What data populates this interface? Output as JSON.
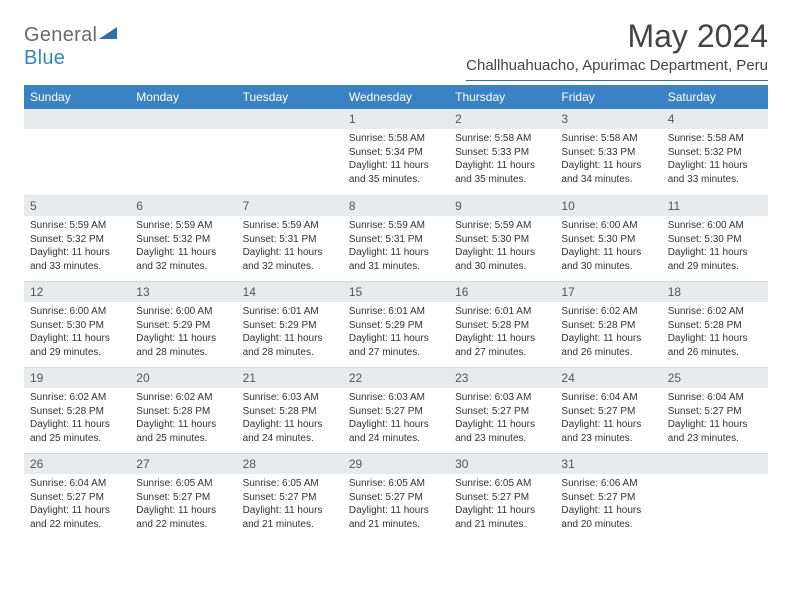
{
  "logo": {
    "text1": "General",
    "text2": "Blue"
  },
  "title": "May 2024",
  "location": "Challhuahuacho, Apurimac Department, Peru",
  "colors": {
    "header_bg": "#3b82c4",
    "header_text": "#ffffff",
    "daynum_bg": "#e8ebed",
    "divider": "#2f6fa8",
    "body_text": "#333333",
    "title_text": "#444444"
  },
  "typography": {
    "title_fontsize": 32,
    "location_fontsize": 15,
    "weekday_fontsize": 12,
    "daynum_fontsize": 12,
    "cell_fontsize": 10
  },
  "weekdays": [
    "Sunday",
    "Monday",
    "Tuesday",
    "Wednesday",
    "Thursday",
    "Friday",
    "Saturday"
  ],
  "weeks": [
    [
      null,
      null,
      null,
      {
        "n": "1",
        "sr": "Sunrise: 5:58 AM",
        "ss": "Sunset: 5:34 PM",
        "d1": "Daylight: 11 hours",
        "d2": "and 35 minutes."
      },
      {
        "n": "2",
        "sr": "Sunrise: 5:58 AM",
        "ss": "Sunset: 5:33 PM",
        "d1": "Daylight: 11 hours",
        "d2": "and 35 minutes."
      },
      {
        "n": "3",
        "sr": "Sunrise: 5:58 AM",
        "ss": "Sunset: 5:33 PM",
        "d1": "Daylight: 11 hours",
        "d2": "and 34 minutes."
      },
      {
        "n": "4",
        "sr": "Sunrise: 5:58 AM",
        "ss": "Sunset: 5:32 PM",
        "d1": "Daylight: 11 hours",
        "d2": "and 33 minutes."
      }
    ],
    [
      {
        "n": "5",
        "sr": "Sunrise: 5:59 AM",
        "ss": "Sunset: 5:32 PM",
        "d1": "Daylight: 11 hours",
        "d2": "and 33 minutes."
      },
      {
        "n": "6",
        "sr": "Sunrise: 5:59 AM",
        "ss": "Sunset: 5:32 PM",
        "d1": "Daylight: 11 hours",
        "d2": "and 32 minutes."
      },
      {
        "n": "7",
        "sr": "Sunrise: 5:59 AM",
        "ss": "Sunset: 5:31 PM",
        "d1": "Daylight: 11 hours",
        "d2": "and 32 minutes."
      },
      {
        "n": "8",
        "sr": "Sunrise: 5:59 AM",
        "ss": "Sunset: 5:31 PM",
        "d1": "Daylight: 11 hours",
        "d2": "and 31 minutes."
      },
      {
        "n": "9",
        "sr": "Sunrise: 5:59 AM",
        "ss": "Sunset: 5:30 PM",
        "d1": "Daylight: 11 hours",
        "d2": "and 30 minutes."
      },
      {
        "n": "10",
        "sr": "Sunrise: 6:00 AM",
        "ss": "Sunset: 5:30 PM",
        "d1": "Daylight: 11 hours",
        "d2": "and 30 minutes."
      },
      {
        "n": "11",
        "sr": "Sunrise: 6:00 AM",
        "ss": "Sunset: 5:30 PM",
        "d1": "Daylight: 11 hours",
        "d2": "and 29 minutes."
      }
    ],
    [
      {
        "n": "12",
        "sr": "Sunrise: 6:00 AM",
        "ss": "Sunset: 5:30 PM",
        "d1": "Daylight: 11 hours",
        "d2": "and 29 minutes."
      },
      {
        "n": "13",
        "sr": "Sunrise: 6:00 AM",
        "ss": "Sunset: 5:29 PM",
        "d1": "Daylight: 11 hours",
        "d2": "and 28 minutes."
      },
      {
        "n": "14",
        "sr": "Sunrise: 6:01 AM",
        "ss": "Sunset: 5:29 PM",
        "d1": "Daylight: 11 hours",
        "d2": "and 28 minutes."
      },
      {
        "n": "15",
        "sr": "Sunrise: 6:01 AM",
        "ss": "Sunset: 5:29 PM",
        "d1": "Daylight: 11 hours",
        "d2": "and 27 minutes."
      },
      {
        "n": "16",
        "sr": "Sunrise: 6:01 AM",
        "ss": "Sunset: 5:28 PM",
        "d1": "Daylight: 11 hours",
        "d2": "and 27 minutes."
      },
      {
        "n": "17",
        "sr": "Sunrise: 6:02 AM",
        "ss": "Sunset: 5:28 PM",
        "d1": "Daylight: 11 hours",
        "d2": "and 26 minutes."
      },
      {
        "n": "18",
        "sr": "Sunrise: 6:02 AM",
        "ss": "Sunset: 5:28 PM",
        "d1": "Daylight: 11 hours",
        "d2": "and 26 minutes."
      }
    ],
    [
      {
        "n": "19",
        "sr": "Sunrise: 6:02 AM",
        "ss": "Sunset: 5:28 PM",
        "d1": "Daylight: 11 hours",
        "d2": "and 25 minutes."
      },
      {
        "n": "20",
        "sr": "Sunrise: 6:02 AM",
        "ss": "Sunset: 5:28 PM",
        "d1": "Daylight: 11 hours",
        "d2": "and 25 minutes."
      },
      {
        "n": "21",
        "sr": "Sunrise: 6:03 AM",
        "ss": "Sunset: 5:28 PM",
        "d1": "Daylight: 11 hours",
        "d2": "and 24 minutes."
      },
      {
        "n": "22",
        "sr": "Sunrise: 6:03 AM",
        "ss": "Sunset: 5:27 PM",
        "d1": "Daylight: 11 hours",
        "d2": "and 24 minutes."
      },
      {
        "n": "23",
        "sr": "Sunrise: 6:03 AM",
        "ss": "Sunset: 5:27 PM",
        "d1": "Daylight: 11 hours",
        "d2": "and 23 minutes."
      },
      {
        "n": "24",
        "sr": "Sunrise: 6:04 AM",
        "ss": "Sunset: 5:27 PM",
        "d1": "Daylight: 11 hours",
        "d2": "and 23 minutes."
      },
      {
        "n": "25",
        "sr": "Sunrise: 6:04 AM",
        "ss": "Sunset: 5:27 PM",
        "d1": "Daylight: 11 hours",
        "d2": "and 23 minutes."
      }
    ],
    [
      {
        "n": "26",
        "sr": "Sunrise: 6:04 AM",
        "ss": "Sunset: 5:27 PM",
        "d1": "Daylight: 11 hours",
        "d2": "and 22 minutes."
      },
      {
        "n": "27",
        "sr": "Sunrise: 6:05 AM",
        "ss": "Sunset: 5:27 PM",
        "d1": "Daylight: 11 hours",
        "d2": "and 22 minutes."
      },
      {
        "n": "28",
        "sr": "Sunrise: 6:05 AM",
        "ss": "Sunset: 5:27 PM",
        "d1": "Daylight: 11 hours",
        "d2": "and 21 minutes."
      },
      {
        "n": "29",
        "sr": "Sunrise: 6:05 AM",
        "ss": "Sunset: 5:27 PM",
        "d1": "Daylight: 11 hours",
        "d2": "and 21 minutes."
      },
      {
        "n": "30",
        "sr": "Sunrise: 6:05 AM",
        "ss": "Sunset: 5:27 PM",
        "d1": "Daylight: 11 hours",
        "d2": "and 21 minutes."
      },
      {
        "n": "31",
        "sr": "Sunrise: 6:06 AM",
        "ss": "Sunset: 5:27 PM",
        "d1": "Daylight: 11 hours",
        "d2": "and 20 minutes."
      },
      null
    ]
  ]
}
